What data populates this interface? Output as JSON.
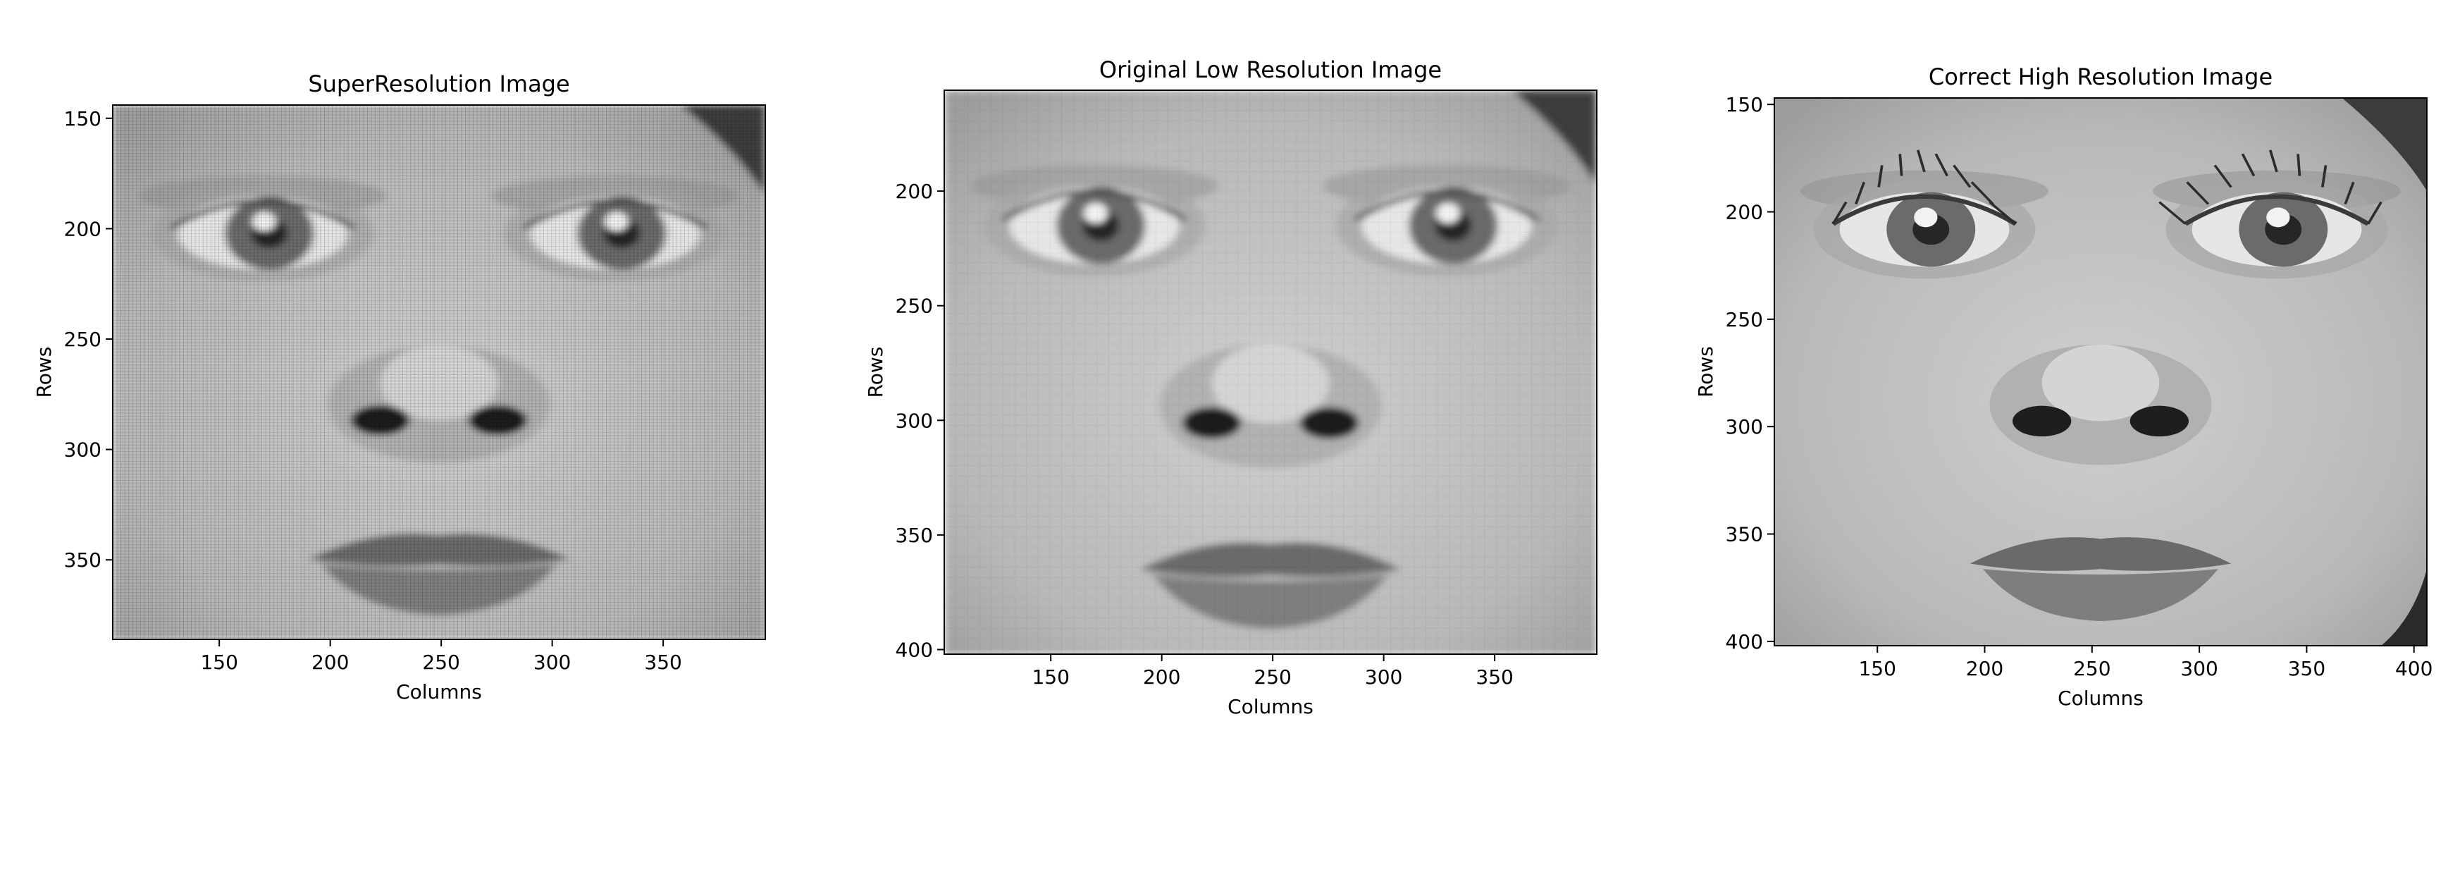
{
  "panels": [
    {
      "id": "super",
      "title": "SuperResolution Image",
      "xlabel": "Columns",
      "ylabel": "Rows",
      "xticks": [
        "150",
        "200",
        "250",
        "300",
        "350"
      ],
      "yticks": [
        "150",
        "200",
        "250",
        "300",
        "350"
      ],
      "xlim": [
        102,
        396
      ],
      "ylim": [
        144,
        386
      ],
      "render": "blurred with grid texture"
    },
    {
      "id": "low",
      "title": "Original Low Resolution Image",
      "xlabel": "Columns",
      "ylabel": "Rows",
      "xticks": [
        "150",
        "200",
        "250",
        "300",
        "350"
      ],
      "yticks": [
        "200",
        "250",
        "300",
        "350",
        "400"
      ],
      "xlim": [
        102,
        396
      ],
      "ylim": [
        156,
        402
      ],
      "render": "pixelated"
    },
    {
      "id": "high",
      "title": "Correct High Resolution Image",
      "xlabel": "Columns",
      "ylabel": "Rows",
      "xticks": [
        "150",
        "200",
        "250",
        "300",
        "350",
        "400"
      ],
      "yticks": [
        "150",
        "200",
        "250",
        "300",
        "350",
        "400"
      ],
      "xlim": [
        102,
        406
      ],
      "ylim": [
        147,
        402
      ],
      "render": "sharp"
    }
  ],
  "colors": {
    "skin": "#bdbdbd",
    "iris": "#6b6b6b",
    "pupil": "#262626",
    "lips": "#7e7e7e",
    "nostril": "#1e1e1e",
    "hair": "#3c3c3c"
  }
}
